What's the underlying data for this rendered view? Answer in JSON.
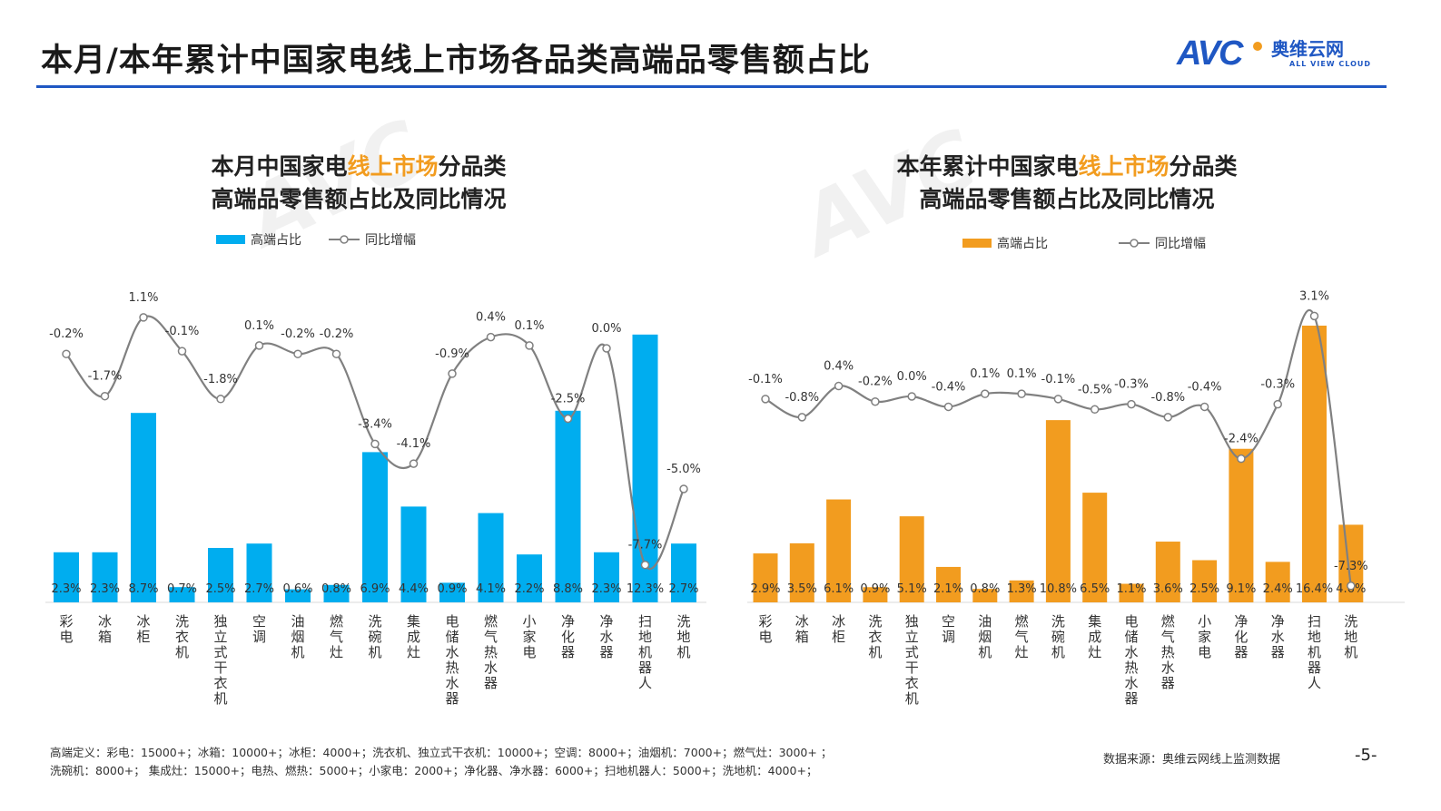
{
  "header": {
    "title": "本月/本年累计中国家电线上市场各品类高端品零售额占比",
    "logo": {
      "mark": "AVC",
      "name_cn": "奥维云网",
      "name_en": "ALL VIEW CLOUD"
    }
  },
  "colors": {
    "brand": "#1f57c3",
    "accent": "#f29c1f",
    "monthly_bar": "#00adef",
    "ytd_bar": "#f29c1f",
    "line": "#808080"
  },
  "chart_data": [
    {
      "type": "bar+line",
      "title_parts": [
        "本月中国家电",
        "线上市场",
        "分品类",
        "高端品零售额占比及同比情况"
      ],
      "legend": {
        "bar": "高端占比",
        "line": "同比增幅"
      },
      "legend_position": "top",
      "categories": [
        "彩电",
        "冰箱",
        "冰柜",
        "洗衣机",
        "独立式干衣机",
        "空调",
        "油烟机",
        "燃气灶",
        "洗碗机",
        "集成灶",
        "电储水热水器",
        "燃气热水器",
        "小家电",
        "净化器",
        "净水器",
        "扫地机器人",
        "洗地机"
      ],
      "series": [
        {
          "name": "高端占比",
          "kind": "bar",
          "unit": "%",
          "values": [
            2.3,
            2.3,
            8.7,
            0.7,
            2.5,
            2.7,
            0.6,
            0.8,
            6.9,
            4.4,
            0.9,
            4.1,
            2.2,
            8.8,
            2.3,
            12.3,
            2.7
          ]
        },
        {
          "name": "同比增幅",
          "kind": "line",
          "unit": "%",
          "values": [
            -0.2,
            -1.7,
            1.1,
            -0.1,
            -1.8,
            0.1,
            -0.2,
            -0.2,
            -3.4,
            -4.1,
            -0.9,
            0.4,
            0.1,
            -2.5,
            0.0,
            -7.7,
            -5.0
          ]
        }
      ],
      "grid": false
    },
    {
      "type": "bar+line",
      "title_parts": [
        "本年累计中国家电",
        "线上市场",
        "分品类",
        "高端品零售额占比及同比情况"
      ],
      "legend": {
        "bar": "高端占比",
        "line": "同比增幅"
      },
      "legend_position": "top",
      "categories": [
        "彩电",
        "冰箱",
        "冰柜",
        "洗衣机",
        "独立式干衣机",
        "空调",
        "油烟机",
        "燃气灶",
        "洗碗机",
        "集成灶",
        "电储水热水器",
        "燃气热水器",
        "小家电",
        "净化器",
        "净水器",
        "扫地机器人",
        "洗地机"
      ],
      "series": [
        {
          "name": "高端占比",
          "kind": "bar",
          "unit": "%",
          "values": [
            2.9,
            3.5,
            6.1,
            0.9,
            5.1,
            2.1,
            0.8,
            1.3,
            10.8,
            6.5,
            1.1,
            3.6,
            2.5,
            9.1,
            2.4,
            16.4,
            4.6
          ]
        },
        {
          "name": "同比增幅",
          "kind": "line",
          "unit": "%",
          "values": [
            -0.1,
            -0.8,
            0.4,
            -0.2,
            0.0,
            -0.4,
            0.1,
            0.1,
            -0.1,
            -0.5,
            -0.3,
            -0.8,
            -0.4,
            -2.4,
            -0.3,
            3.1,
            -7.3
          ]
        }
      ],
      "grid": false
    }
  ],
  "footer": {
    "definition_line1": "高端定义：彩电：15000+；冰箱：10000+；冰柜：4000+；洗衣机、独立式干衣机：10000+；空调：8000+；油烟机：7000+；燃气灶：3000+ ；",
    "definition_line2": "洗碗机：8000+；  集成灶：15000+；电热、燃热：5000+；小家电：2000+；净化器、净水器：6000+；扫地机器人：5000+；洗地机：4000+；",
    "source": "数据来源：奥维云网线上监测数据",
    "page": "-5-"
  }
}
